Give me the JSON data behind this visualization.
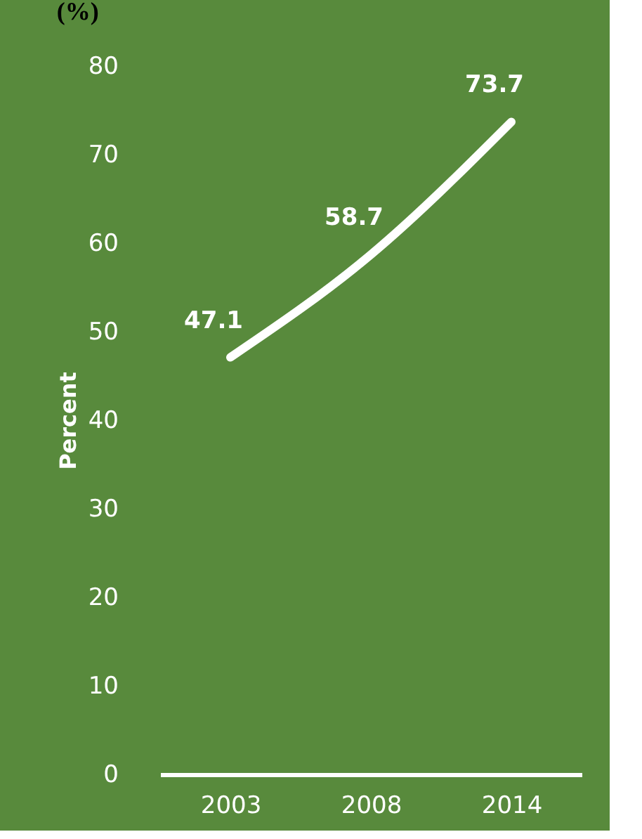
{
  "chart_data": {
    "type": "line",
    "title": "(%)",
    "ylabel": "Percent",
    "categories": [
      "2003",
      "2008",
      "2014"
    ],
    "series": [
      {
        "color": "#ffffff",
        "values": [
          47.1,
          58.7,
          73.7
        ]
      }
    ],
    "ylim": [
      0,
      80
    ],
    "yticks": [
      0,
      10,
      20,
      30,
      40,
      50,
      60,
      70,
      80
    ],
    "data_labels": true,
    "grid": false,
    "legend": false,
    "marker": "none",
    "line_style": "solid"
  }
}
